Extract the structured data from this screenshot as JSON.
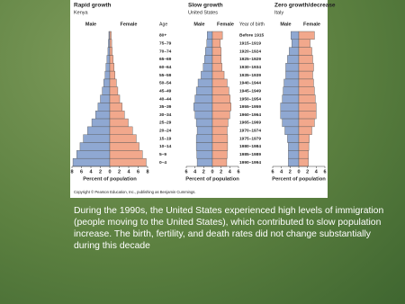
{
  "chart_data": [
    {
      "type": "pyramid",
      "title": "Rapid growth",
      "subtitle": "Kenya",
      "xlabel": "Percent of population",
      "category_label": "Age",
      "categories": [
        "80+",
        "75–79",
        "70–74",
        "65–69",
        "60–64",
        "55–59",
        "50–54",
        "45–49",
        "40–44",
        "35–39",
        "30–34",
        "25–29",
        "20–24",
        "15–19",
        "10–14",
        "5–9",
        "0–4"
      ],
      "series": [
        {
          "name": "Male",
          "color": "#8fa8d2",
          "values": [
            -0.2,
            -0.3,
            -0.4,
            -0.6,
            -0.8,
            -1.0,
            -1.3,
            -1.6,
            -2.0,
            -2.5,
            -3.0,
            -3.8,
            -4.7,
            -5.6,
            -6.3,
            -7.0,
            -7.8
          ]
        },
        {
          "name": "Female",
          "color": "#f2a88c",
          "values": [
            0.3,
            0.4,
            0.5,
            0.7,
            0.9,
            1.1,
            1.4,
            1.7,
            2.1,
            2.6,
            3.1,
            3.9,
            4.8,
            5.6,
            6.2,
            6.9,
            7.7
          ]
        }
      ],
      "xlim": [
        -8,
        8
      ],
      "xticks": [
        {
          "value": -8,
          "label": "8"
        },
        {
          "value": -6,
          "label": "6"
        },
        {
          "value": -4,
          "label": "4"
        },
        {
          "value": -2,
          "label": "2"
        },
        0,
        2,
        4,
        6,
        8
      ]
    },
    {
      "type": "pyramid",
      "title": "Slow growth",
      "subtitle": "United States",
      "xlabel": "Percent of population",
      "category_label": "Year of birth",
      "categories": [
        "Before 1915",
        "1915–1919",
        "1920–1924",
        "1925–1929",
        "1930–1934",
        "1935–1939",
        "1940–1944",
        "1945–1949",
        "1950–1954",
        "1955–1959",
        "1960–1964",
        "1965–1969",
        "1970–1974",
        "1975–1979",
        "1980–1984",
        "1985–1989",
        "1990–1994"
      ],
      "series": [
        {
          "name": "Male",
          "color": "#8fa8d2",
          "values": [
            -1.2,
            -1.3,
            -1.6,
            -1.8,
            -2.1,
            -2.6,
            -3.3,
            -3.7,
            -4.0,
            -4.3,
            -4.0,
            -3.7,
            -3.5,
            -3.7,
            -3.7,
            -3.6,
            -3.5
          ]
        },
        {
          "name": "Female",
          "color": "#f2a88c",
          "values": [
            2.3,
            1.8,
            2.0,
            2.0,
            2.2,
            2.7,
            3.4,
            3.8,
            4.1,
            4.3,
            4.0,
            3.6,
            3.4,
            3.5,
            3.5,
            3.4,
            3.3
          ]
        }
      ],
      "xlim": [
        -6,
        6
      ],
      "xticks": [
        {
          "value": -6,
          "label": "6"
        },
        {
          "value": -4,
          "label": "4"
        },
        {
          "value": -2,
          "label": "2"
        },
        0,
        2,
        4,
        6
      ]
    },
    {
      "type": "pyramid",
      "title": "Zero growth/decrease",
      "subtitle": "Italy",
      "xlabel": "Percent of population",
      "series": [
        {
          "name": "Male",
          "color": "#8fa8d2",
          "values": [
            -1.8,
            -1.6,
            -2.2,
            -2.6,
            -3.0,
            -3.0,
            -3.4,
            -3.6,
            -3.8,
            -4.2,
            -4.2,
            -3.8,
            -3.2,
            -2.6,
            -2.4,
            -2.4,
            -2.4
          ]
        },
        {
          "name": "Female",
          "color": "#f2a88c",
          "values": [
            3.6,
            2.6,
            3.0,
            3.2,
            3.4,
            3.2,
            3.4,
            3.6,
            3.8,
            4.0,
            4.0,
            3.6,
            3.0,
            2.4,
            2.3,
            2.2,
            2.2
          ]
        }
      ],
      "xlim": [
        -6,
        6
      ],
      "xticks": [
        {
          "value": -6,
          "label": "6"
        },
        {
          "value": -4,
          "label": "4"
        },
        {
          "value": -2,
          "label": "2"
        },
        0,
        2,
        4,
        6
      ]
    }
  ],
  "copyright": "Copyright © Pearson Education, Inc., publishing as Benjamin Cummings.",
  "caption": "During the 1990s, the United States experienced high levels of immigration (people moving to the United States), which contributed to slow population increase. The birth, fertility, and death rates did not change substantially during this decade"
}
